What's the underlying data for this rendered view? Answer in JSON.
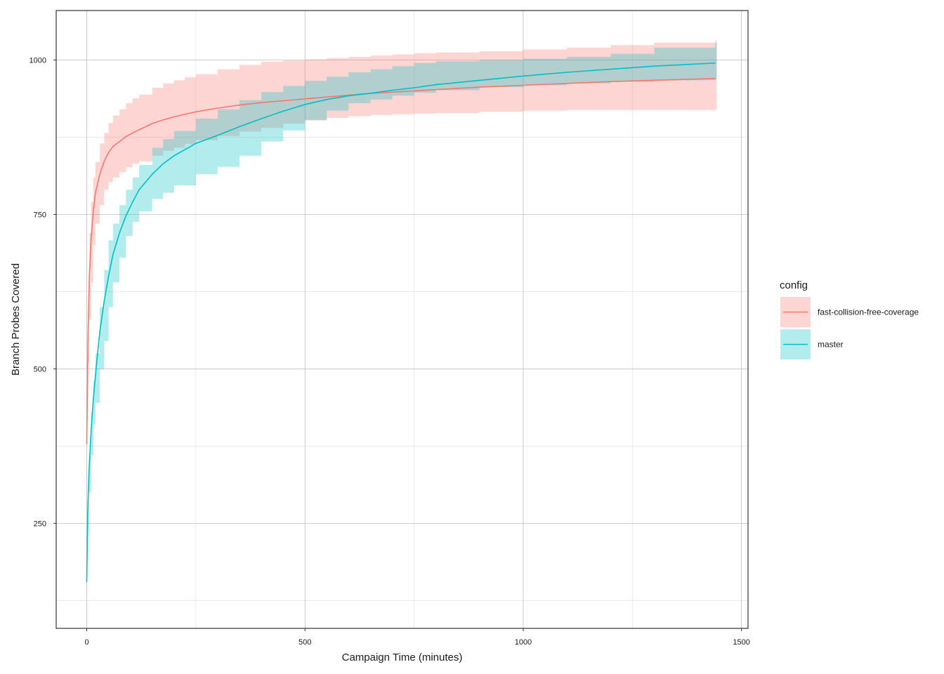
{
  "chart_data": {
    "type": "line",
    "xlabel": "Campaign Time (minutes)",
    "ylabel": "Branch Probes Covered",
    "xlim": [
      -70,
      1515
    ],
    "ylim": [
      80,
      1080
    ],
    "xticks": [
      0,
      500,
      1000,
      1500
    ],
    "yticks": [
      250,
      500,
      750,
      1000
    ],
    "grid": true,
    "legend": {
      "title": "config",
      "position": "right"
    },
    "series": [
      {
        "name": "fast-collision-free-coverage",
        "color": "#F8766D",
        "band_color": "#F8766D",
        "x": [
          0,
          3,
          6,
          10,
          15,
          20,
          30,
          40,
          50,
          60,
          75,
          90,
          105,
          120,
          150,
          175,
          200,
          225,
          250,
          300,
          350,
          400,
          450,
          500,
          550,
          600,
          650,
          700,
          750,
          800,
          900,
          1000,
          1100,
          1200,
          1300,
          1440
        ],
        "values": [
          378,
          560,
          650,
          710,
          755,
          785,
          815,
          836,
          850,
          860,
          868,
          876,
          882,
          887,
          897,
          903,
          908,
          912,
          916,
          922,
          927,
          931,
          934,
          937,
          940,
          943,
          946,
          948,
          950,
          952,
          956,
          959,
          962,
          965,
          967,
          970
        ],
        "lower": [
          378,
          510,
          580,
          640,
          700,
          735,
          765,
          790,
          802,
          810,
          818,
          826,
          832,
          836,
          845,
          853,
          858,
          864,
          870,
          877,
          884,
          890,
          897,
          902,
          906,
          909,
          911,
          912,
          913,
          914,
          916,
          918,
          919,
          919,
          919,
          919
        ],
        "upper": [
          378,
          600,
          720,
          770,
          810,
          835,
          865,
          882,
          898,
          910,
          920,
          930,
          938,
          944,
          955,
          962,
          967,
          972,
          977,
          985,
          992,
          997,
          999,
          1001,
          1003,
          1005,
          1007,
          1009,
          1011,
          1012,
          1014,
          1017,
          1020,
          1024,
          1028,
          1032
        ]
      },
      {
        "name": "master",
        "color": "#00BFC4",
        "band_color": "#00BFC4",
        "x": [
          0,
          2,
          5,
          10,
          15,
          20,
          30,
          40,
          50,
          60,
          75,
          90,
          105,
          120,
          150,
          175,
          200,
          250,
          300,
          350,
          400,
          450,
          500,
          550,
          600,
          650,
          700,
          750,
          800,
          900,
          1000,
          1100,
          1200,
          1300,
          1440
        ],
        "values": [
          155,
          260,
          330,
          400,
          450,
          490,
          560,
          610,
          650,
          685,
          720,
          748,
          770,
          790,
          815,
          832,
          845,
          865,
          878,
          892,
          905,
          917,
          928,
          936,
          942,
          946,
          951,
          955,
          960,
          967,
          974,
          980,
          985,
          990,
          995
        ],
        "lower": [
          155,
          230,
          300,
          360,
          410,
          445,
          500,
          545,
          600,
          640,
          680,
          715,
          738,
          755,
          775,
          785,
          797,
          815,
          827,
          845,
          868,
          886,
          903,
          918,
          930,
          936,
          942,
          947,
          951,
          956,
          959,
          962,
          965,
          967,
          968
        ],
        "upper": [
          155,
          290,
          360,
          430,
          480,
          525,
          600,
          660,
          708,
          735,
          765,
          790,
          810,
          830,
          858,
          872,
          885,
          905,
          920,
          935,
          948,
          958,
          966,
          973,
          980,
          985,
          990,
          995,
          998,
          1000,
          1002,
          1005,
          1010,
          1020,
          1028
        ]
      }
    ]
  }
}
